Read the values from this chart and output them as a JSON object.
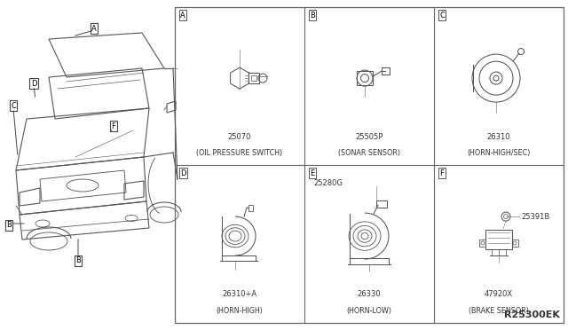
{
  "bg_color": "#ffffff",
  "line_color": "#555555",
  "text_color": "#333333",
  "diagram_id": "R25300EK",
  "cells": [
    {
      "label": "A",
      "part_nums": [
        "25070"
      ],
      "desc": "(OIL PRESSURE SWITCH)",
      "row": 0,
      "col": 0
    },
    {
      "label": "B",
      "part_nums": [
        "25505P"
      ],
      "desc": "(SONAR SENSOR)",
      "row": 0,
      "col": 1
    },
    {
      "label": "C",
      "part_nums": [
        "26310"
      ],
      "desc": "(HORN-HIGH/SEC)",
      "row": 0,
      "col": 2
    },
    {
      "label": "D",
      "part_nums": [
        "26310+A"
      ],
      "desc": "(HORN-HIGH)",
      "row": 1,
      "col": 0
    },
    {
      "label": "E",
      "part_nums": [
        "25280G",
        "26330"
      ],
      "desc": "(HORN-LOW)",
      "row": 1,
      "col": 1
    },
    {
      "label": "F",
      "part_nums": [
        "25391B",
        "47920X"
      ],
      "desc": "(BRAKE SENSOR)",
      "row": 1,
      "col": 2
    }
  ],
  "gx0": 197,
  "gy0": 8,
  "gw": 438,
  "gh": 356,
  "grid_cols": 3,
  "grid_rows": 2
}
